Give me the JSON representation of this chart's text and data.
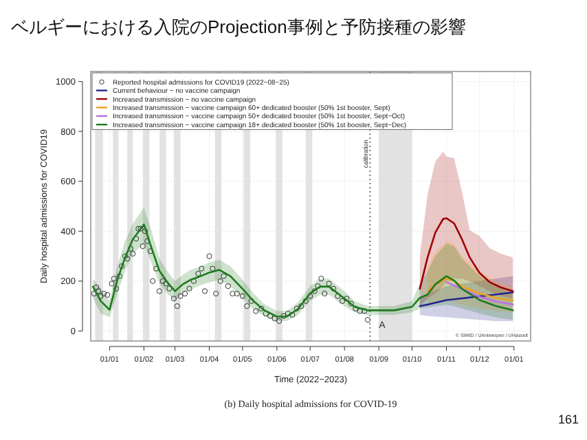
{
  "chart_data": {
    "type": "line",
    "title": "ベルギーにおける入院のProjection事例と予防接種の影響",
    "xlabel": "Time (2022−2023)",
    "ylabel": "Daily hospital admissions for COVID19",
    "xlim": [
      "2021-12-15",
      "2023-01-16"
    ],
    "ylim": [
      -40,
      1040
    ],
    "yticks": [
      0,
      200,
      400,
      600,
      800,
      1000
    ],
    "xticks": [
      {
        "value": "2022-01-01",
        "label": "01/01"
      },
      {
        "value": "2022-02-01",
        "label": "01/02"
      },
      {
        "value": "2022-03-01",
        "label": "01/03"
      },
      {
        "value": "2022-04-01",
        "label": "01/04"
      },
      {
        "value": "2022-05-01",
        "label": "01/05"
      },
      {
        "value": "2022-06-01",
        "label": "01/06"
      },
      {
        "value": "2022-07-01",
        "label": "01/07"
      },
      {
        "value": "2022-08-01",
        "label": "01/08"
      },
      {
        "value": "2022-09-01",
        "label": "01/09"
      },
      {
        "value": "2022-10-01",
        "label": "01/10"
      },
      {
        "value": "2022-11-01",
        "label": "01/11"
      },
      {
        "value": "2022-12-01",
        "label": "01/12"
      },
      {
        "value": "2023-01-01",
        "label": "01/01"
      }
    ],
    "grid": true,
    "legend": "top left",
    "line_style": "solid",
    "bands": [
      {
        "axis": "x",
        "from": "2021-12-19",
        "to": "2021-12-26",
        "color": "#dddddd"
      },
      {
        "axis": "x",
        "from": "2022-01-04",
        "to": "2022-01-09",
        "color": "#dddddd"
      },
      {
        "axis": "x",
        "from": "2022-01-17",
        "to": "2022-01-22",
        "color": "#dddddd"
      },
      {
        "axis": "x",
        "from": "2022-01-31",
        "to": "2022-02-06",
        "color": "#dddddd"
      },
      {
        "axis": "x",
        "from": "2022-02-15",
        "to": "2022-02-21",
        "color": "#dddddd"
      },
      {
        "axis": "x",
        "from": "2022-02-28",
        "to": "2022-03-06",
        "color": "#dddddd"
      },
      {
        "axis": "x",
        "from": "2022-04-06",
        "to": "2022-04-12",
        "color": "#dddddd"
      },
      {
        "axis": "x",
        "from": "2022-05-02",
        "to": "2022-05-08",
        "color": "#dddddd"
      },
      {
        "axis": "x",
        "from": "2022-05-31",
        "to": "2022-06-06",
        "color": "#dddddd"
      },
      {
        "axis": "x",
        "from": "2022-06-27",
        "to": "2022-07-03",
        "color": "#dddddd"
      },
      {
        "axis": "x",
        "from": "2022-09-01",
        "to": "2022-10-01",
        "color": "#dddddd"
      }
    ],
    "ref_lines": [
      {
        "axis": "x",
        "value": "2022-08-24",
        "label": "calibration",
        "color": "#444444",
        "line_style": "dotted"
      }
    ],
    "annotations": [
      {
        "text": "A",
        "x": "2022-09-04",
        "y": 0
      },
      "© SIMID / UAntwerpen / UHasselt",
      "(b) Daily hospital admissions for COVID-19",
      "161"
    ],
    "series": [
      {
        "name": "Reported hospital admissions for COVID19 (2022−08−25)",
        "type": "scatter",
        "marker": "circle",
        "color": "#333333",
        "x": [
          "2021-12-18",
          "2021-12-20",
          "2021-12-22",
          "2021-12-24",
          "2021-12-27",
          "2021-12-30",
          "2022-01-03",
          "2022-01-05",
          "2022-01-07",
          "2022-01-10",
          "2022-01-12",
          "2022-01-15",
          "2022-01-17",
          "2022-01-20",
          "2022-01-22",
          "2022-01-25",
          "2022-01-27",
          "2022-01-29",
          "2022-01-31",
          "2022-02-02",
          "2022-02-04",
          "2022-02-07",
          "2022-02-09",
          "2022-02-12",
          "2022-02-15",
          "2022-02-18",
          "2022-02-21",
          "2022-02-24",
          "2022-02-28",
          "2022-03-03",
          "2022-03-06",
          "2022-03-10",
          "2022-03-14",
          "2022-03-18",
          "2022-03-22",
          "2022-03-25",
          "2022-03-28",
          "2022-04-01",
          "2022-04-04",
          "2022-04-07",
          "2022-04-11",
          "2022-04-14",
          "2022-04-18",
          "2022-04-22",
          "2022-04-26",
          "2022-05-01",
          "2022-05-05",
          "2022-05-09",
          "2022-05-13",
          "2022-05-18",
          "2022-05-22",
          "2022-05-26",
          "2022-05-30",
          "2022-06-03",
          "2022-06-07",
          "2022-06-11",
          "2022-06-15",
          "2022-06-19",
          "2022-06-23",
          "2022-06-27",
          "2022-07-01",
          "2022-07-05",
          "2022-07-08",
          "2022-07-11",
          "2022-07-14",
          "2022-07-18",
          "2022-07-22",
          "2022-07-26",
          "2022-07-30",
          "2022-08-03",
          "2022-08-07",
          "2022-08-11",
          "2022-08-15",
          "2022-08-19",
          "2022-08-22"
        ],
        "values": [
          150,
          175,
          160,
          140,
          150,
          145,
          190,
          210,
          170,
          220,
          260,
          300,
          290,
          330,
          310,
          370,
          410,
          410,
          340,
          400,
          360,
          320,
          200,
          250,
          160,
          200,
          190,
          170,
          130,
          100,
          140,
          150,
          170,
          200,
          230,
          250,
          160,
          300,
          250,
          150,
          200,
          220,
          180,
          150,
          150,
          140,
          100,
          120,
          80,
          90,
          70,
          60,
          50,
          40,
          60,
          70,
          65,
          90,
          100,
          120,
          140,
          160,
          180,
          210,
          150,
          190,
          170,
          140,
          120,
          130,
          110,
          90,
          80,
          80,
          45
        ]
      },
      {
        "name": "Current behaviour − no vaccine campaign",
        "color": "#23238f",
        "x": [
          "2022-10-08",
          "2022-10-15",
          "2022-11-01",
          "2022-11-15",
          "2022-12-01",
          "2022-12-15",
          "2022-12-31"
        ],
        "values": [
          100,
          106,
          124,
          131,
          139,
          146,
          155
        ],
        "lower": [
          65,
          60,
          55,
          50,
          45,
          40,
          40
        ],
        "upper": [
          135,
          150,
          180,
          190,
          200,
          210,
          220
        ]
      },
      {
        "name": "Increased transmission − no vaccine campaign",
        "color": "#a00000",
        "x": [
          "2022-10-08",
          "2022-10-15",
          "2022-10-22",
          "2022-10-29",
          "2022-11-01",
          "2022-11-08",
          "2022-11-15",
          "2022-11-22",
          "2022-12-01",
          "2022-12-10",
          "2022-12-20",
          "2022-12-31"
        ],
        "values": [
          169,
          295,
          395,
          449,
          452,
          431,
          368,
          295,
          232,
          196,
          175,
          160
        ],
        "lower": [
          100,
          130,
          150,
          180,
          200,
          210,
          210,
          200,
          180,
          160,
          140,
          130
        ],
        "upper": [
          300,
          548,
          680,
          719,
          700,
          692,
          560,
          404,
          380,
          332,
          310,
          295
        ]
      },
      {
        "name": "Increased transmission − vaccine campaign 60+ dedicated booster (50% 1st booster, Sept)",
        "color": "#f0a020",
        "x": [
          "2022-10-15",
          "2022-10-22",
          "2022-11-01",
          "2022-11-08",
          "2022-11-15",
          "2022-12-01",
          "2022-12-15",
          "2022-12-31"
        ],
        "values": [
          160,
          187,
          209,
          202,
          178,
          151,
          133,
          122
        ],
        "lower": [
          100,
          110,
          120,
          115,
          105,
          90,
          80,
          75
        ],
        "upper": [
          250,
          320,
          360,
          350,
          300,
          240,
          200,
          180
        ]
      },
      {
        "name": "Increased transmission − vaccine campaign 50+ dedicated booster (50% 1st booster, Sept−Oct)",
        "color": "#c070e0",
        "x": [
          "2022-11-01",
          "2022-11-15",
          "2022-12-01",
          "2022-12-15",
          "2022-12-31"
        ],
        "values": [
          196,
          169,
          137,
          119,
          106
        ]
      },
      {
        "name": "Increased transmission − vaccine campaign 18+ dedicated booster (50% 1st booster, Sept−Dec)",
        "color": "#1e7a1e",
        "x": [
          "2021-12-17",
          "2021-12-24",
          "2022-01-01",
          "2022-01-08",
          "2022-01-15",
          "2022-01-22",
          "2022-02-01",
          "2022-02-08",
          "2022-02-15",
          "2022-02-22",
          "2022-03-01",
          "2022-03-08",
          "2022-03-15",
          "2022-03-22",
          "2022-04-01",
          "2022-04-10",
          "2022-04-20",
          "2022-05-01",
          "2022-05-10",
          "2022-05-20",
          "2022-06-01",
          "2022-06-10",
          "2022-06-20",
          "2022-07-01",
          "2022-07-10",
          "2022-07-18",
          "2022-08-01",
          "2022-08-10",
          "2022-08-22",
          "2022-09-01",
          "2022-09-15",
          "2022-10-01",
          "2022-10-08",
          "2022-10-15",
          "2022-10-22",
          "2022-11-01",
          "2022-11-08",
          "2022-11-15",
          "2022-12-01",
          "2022-12-15",
          "2022-12-31"
        ],
        "values": [
          178,
          120,
          85,
          205,
          295,
          368,
          427,
          331,
          241,
          196,
          160,
          187,
          205,
          216,
          234,
          245,
          220,
          169,
          124,
          85,
          58,
          58,
          88,
          151,
          178,
          178,
          130,
          97,
          83,
          83,
          83,
          97,
          133,
          146,
          187,
          220,
          202,
          169,
          124,
          101,
          83
        ],
        "lower": [
          130,
          70,
          55,
          150,
          240,
          310,
          350,
          270,
          190,
          150,
          120,
          150,
          165,
          180,
          195,
          205,
          180,
          130,
          90,
          60,
          40,
          40,
          65,
          120,
          145,
          145,
          100,
          75,
          65,
          65,
          65,
          75,
          90,
          95,
          100,
          105,
          100,
          90,
          70,
          55,
          45
        ],
        "upper": [
          210,
          170,
          120,
          260,
          360,
          430,
          495,
          400,
          290,
          240,
          200,
          225,
          245,
          255,
          275,
          285,
          260,
          205,
          155,
          110,
          80,
          80,
          115,
          180,
          210,
          210,
          160,
          120,
          100,
          100,
          100,
          120,
          190,
          240,
          300,
          350,
          340,
          290,
          220,
          180,
          150
        ]
      }
    ]
  }
}
